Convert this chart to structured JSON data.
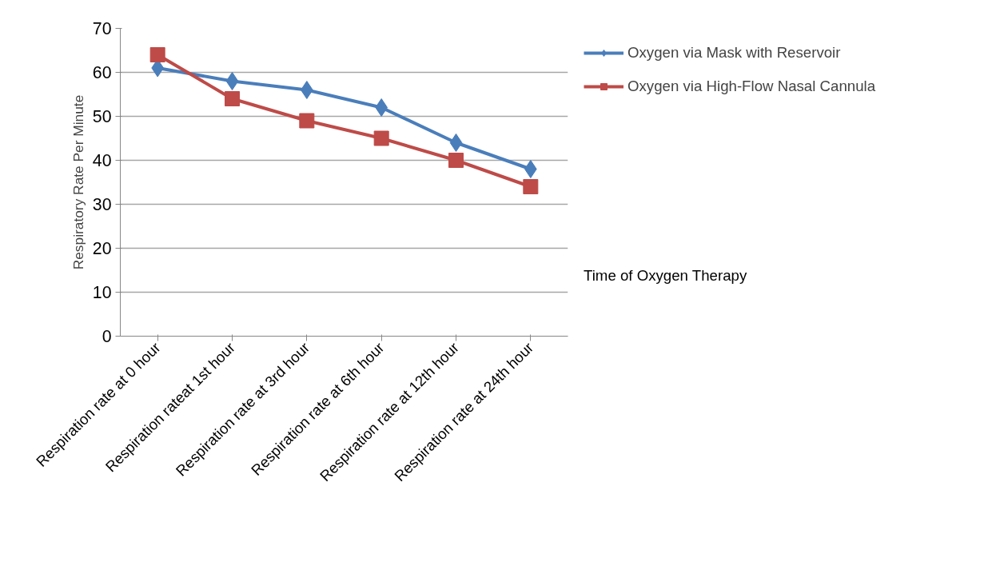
{
  "chart_data": {
    "type": "line",
    "ylabel": "Respiratory Rate Per Minute",
    "xlabel": "Time of Oxygen Therapy",
    "categories": [
      "Respiration rate at 0 hour",
      "Respiration rateat 1st hour",
      "Respiration rate at 3rd hour",
      "Respiration rate at 6th hour",
      "Respiration rate at 12th hour",
      "Respiration rate at 24th hour"
    ],
    "series": [
      {
        "name": "Oxygen via Mask with Reservoir",
        "color": "#4a7ebb",
        "marker": "diamond",
        "values": [
          61,
          58,
          56,
          52,
          44,
          38
        ]
      },
      {
        "name": "Oxygen via High-Flow Nasal Cannula",
        "color": "#be4b48",
        "marker": "square",
        "values": [
          64,
          54,
          49,
          45,
          40,
          34
        ]
      }
    ],
    "ylim": [
      0,
      70
    ],
    "yticks": [
      0,
      10,
      20,
      30,
      40,
      50,
      60,
      70
    ],
    "grid": "y",
    "legend": "right",
    "line_style": "solid"
  }
}
